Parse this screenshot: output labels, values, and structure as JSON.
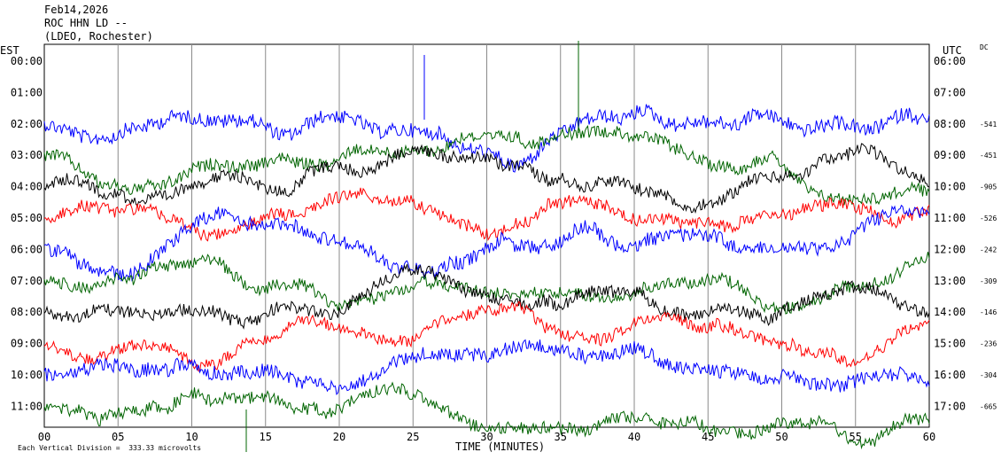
{
  "header": {
    "date": "Feb14,2026",
    "station": "ROC HHN LD --",
    "network": "(LDEO, Rochester)"
  },
  "left_axis_label": "EST",
  "right_axis_label": "UTC",
  "dc_label": "DC",
  "footer": {
    "scale_note": "Each Vertical Division =  333.33 microvolts"
  },
  "chart_data": {
    "type": "line",
    "xlabel": "TIME (MINUTES)",
    "xlim": [
      0,
      60
    ],
    "x_ticks": [
      "00",
      "05",
      "10",
      "15",
      "20",
      "25",
      "30",
      "35",
      "40",
      "45",
      "50",
      "55",
      "60"
    ],
    "series": [
      {
        "est": "00:00",
        "utc": "06:00",
        "dc": "",
        "color": "#0000ff",
        "present": false
      },
      {
        "est": "01:00",
        "utc": "07:00",
        "dc": "",
        "color": "#006400",
        "present": false
      },
      {
        "est": "02:00",
        "utc": "08:00",
        "dc": "-541",
        "color": "#0000ff",
        "present": true
      },
      {
        "est": "03:00",
        "utc": "09:00",
        "dc": "-451",
        "color": "#006400",
        "present": true
      },
      {
        "est": "04:00",
        "utc": "10:00",
        "dc": "-905",
        "color": "#000000",
        "present": true
      },
      {
        "est": "05:00",
        "utc": "11:00",
        "dc": "-526",
        "color": "#ff0000",
        "present": true
      },
      {
        "est": "06:00",
        "utc": "12:00",
        "dc": "-242",
        "color": "#0000ff",
        "present": true
      },
      {
        "est": "07:00",
        "utc": "13:00",
        "dc": "-309",
        "color": "#006400",
        "present": true
      },
      {
        "est": "08:00",
        "utc": "14:00",
        "dc": "-146",
        "color": "#000000",
        "present": true
      },
      {
        "est": "09:00",
        "utc": "15:00",
        "dc": "-236",
        "color": "#ff0000",
        "present": true
      },
      {
        "est": "10:00",
        "utc": "16:00",
        "dc": "-304",
        "color": "#0000ff",
        "present": true
      },
      {
        "est": "11:00",
        "utc": "17:00",
        "dc": "-665",
        "color": "#006400",
        "present": true
      }
    ]
  }
}
